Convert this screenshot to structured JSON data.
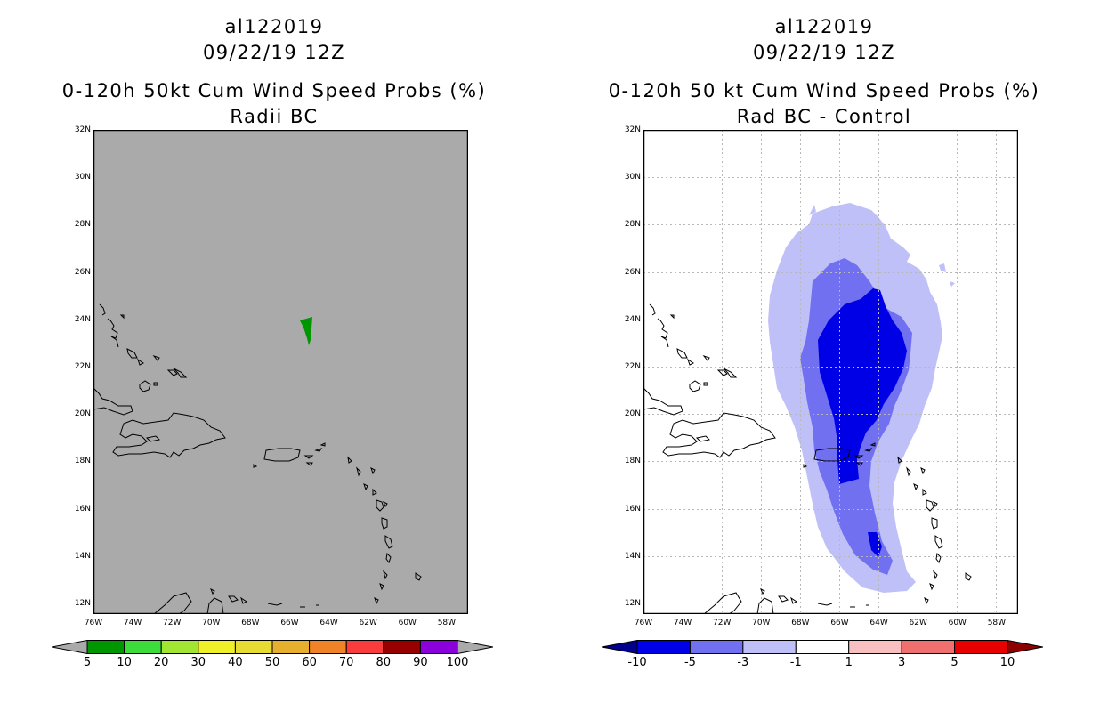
{
  "left_panel": {
    "storm_id": "al122019",
    "datetime": "09/22/19 12Z",
    "product": "0-120h 50kt Cum Wind Speed Probs (%)",
    "subtitle": "Radii BC",
    "background_color": "#aaaaaa",
    "colorbar": {
      "labels": [
        "5",
        "10",
        "20",
        "30",
        "40",
        "50",
        "60",
        "70",
        "80",
        "90",
        "100"
      ],
      "colors": [
        "#009600",
        "#3cdc3c",
        "#a0e632",
        "#f0f028",
        "#e6dc32",
        "#e6af2d",
        "#f08228",
        "#fa3c3c",
        "#960000",
        "#8c00dc"
      ]
    }
  },
  "right_panel": {
    "storm_id": "al122019",
    "datetime": "09/22/19 12Z",
    "product": "0-120h 50 kt Cum Wind Speed Probs (%)",
    "subtitle": "Rad BC - Control",
    "background_color": "#ffffff",
    "colorbar": {
      "labels": [
        "-10",
        "-5",
        "-3",
        "-1",
        "1",
        "3",
        "5",
        "10"
      ],
      "colors": [
        "#0000e6",
        "#7070f0",
        "#c0c0f8",
        "#ffffff",
        "#f8c0c0",
        "#f07070",
        "#e60000"
      ],
      "end_colors": [
        "#00008c",
        "#8c0000"
      ]
    }
  },
  "axes": {
    "lat_labels": [
      "32N",
      "30N",
      "28N",
      "26N",
      "24N",
      "22N",
      "20N",
      "18N",
      "16N",
      "14N",
      "12N"
    ],
    "lon_labels": [
      "76W",
      "74W",
      "72W",
      "70W",
      "68W",
      "66W",
      "64W",
      "62W",
      "60W",
      "58W"
    ]
  }
}
